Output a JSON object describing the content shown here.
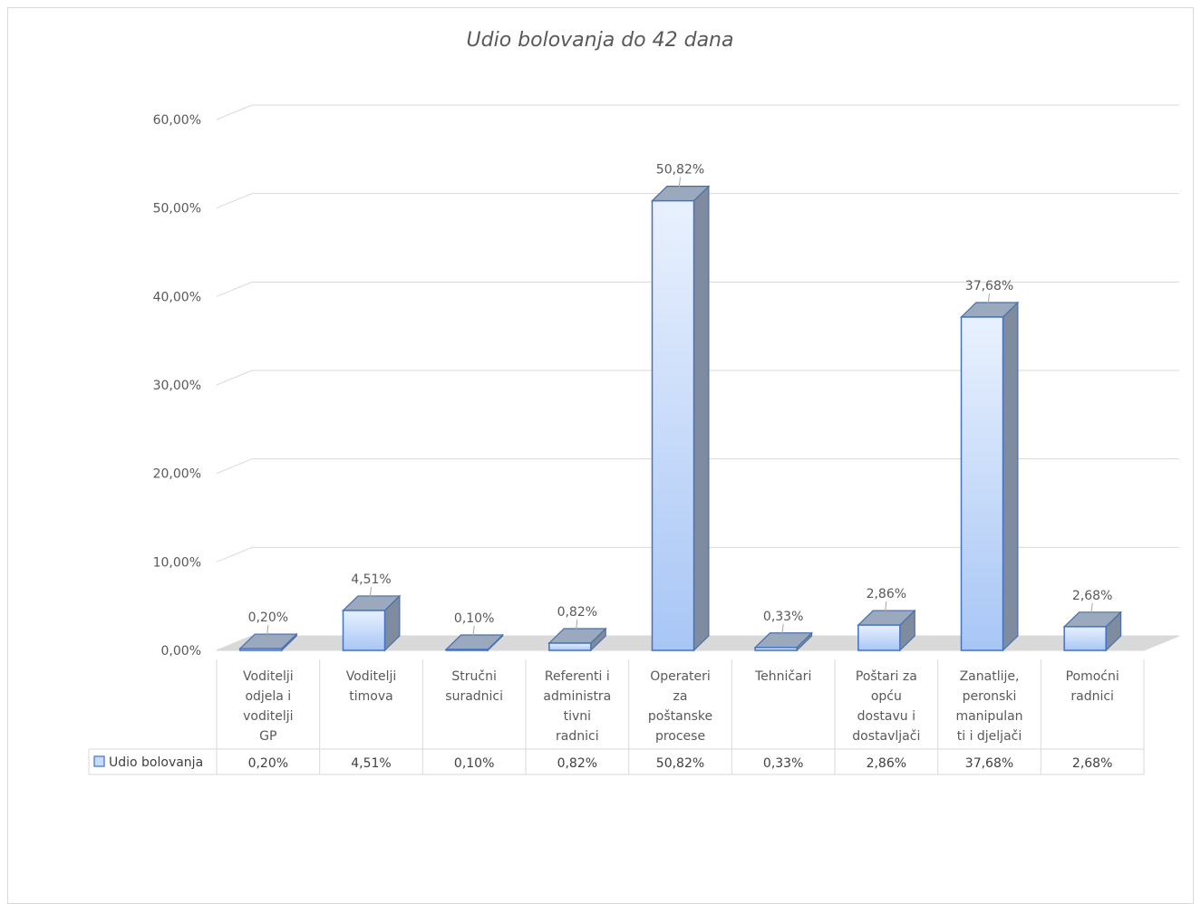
{
  "chart_data": {
    "type": "bar",
    "title": "Udio bolovanja do 42 dana",
    "categories": [
      "Voditelji odjela i voditelji GP",
      "Voditelji timova",
      "Stručni suradnici",
      "Referenti i administrativni radnici",
      "Operateri za poštanske procese",
      "Tehničari",
      "Poštari za opću dostavu i dostavljači",
      "Zanatlije, peronski manipulanti i djeljači",
      "Pomoćni radnici"
    ],
    "category_lines": [
      [
        "Voditelji",
        "odjela i",
        "voditelji",
        "GP"
      ],
      [
        "Voditelji",
        "timova"
      ],
      [
        "Stručni",
        "suradnici"
      ],
      [
        "Referenti i",
        "administra",
        "tivni",
        "radnici"
      ],
      [
        "Operateri",
        "za",
        "poštanske",
        "procese"
      ],
      [
        "Tehničari"
      ],
      [
        "Poštari za",
        "opću",
        "dostavu i",
        "dostavljači"
      ],
      [
        "Zanatlije,",
        "peronski",
        "manipulan",
        "ti i djeljači"
      ],
      [
        "Pomoćni",
        "radnici"
      ]
    ],
    "series": [
      {
        "name": "Udio bolovanja",
        "values": [
          0.2,
          4.51,
          0.1,
          0.82,
          50.82,
          0.33,
          2.86,
          37.68,
          2.68
        ],
        "labels": [
          "0,20%",
          "4,51%",
          "0,10%",
          "0,82%",
          "50,82%",
          "0,33%",
          "2,86%",
          "37,68%",
          "2,68%"
        ],
        "color": "#4472c4"
      }
    ],
    "y_ticks": [
      "0,00%",
      "10,00%",
      "20,00%",
      "30,00%",
      "40,00%",
      "50,00%",
      "60,00%"
    ],
    "ylim": [
      0,
      60
    ],
    "grid": true,
    "legend": "data-table",
    "data_table": true
  }
}
